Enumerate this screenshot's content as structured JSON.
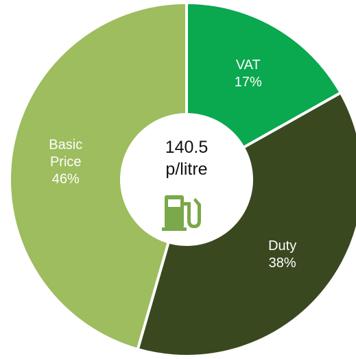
{
  "chart_data": {
    "type": "donut",
    "categories": [
      "VAT",
      "Duty",
      "Basic Price"
    ],
    "values": [
      17,
      38,
      46
    ],
    "value_labels": [
      "17%",
      "38%",
      "46%"
    ],
    "colors": [
      "#0aa84f",
      "#3a4820",
      "#9dbd5e"
    ],
    "center_text": [
      "140.5",
      "p/litre"
    ]
  }
}
